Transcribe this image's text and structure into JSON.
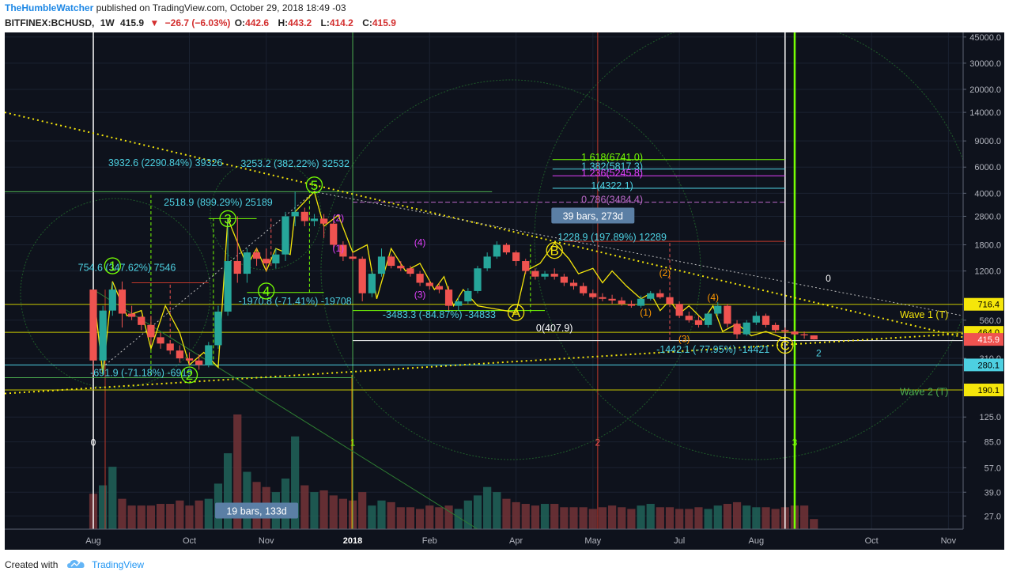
{
  "header": {
    "author": "TheHumbleWatcher",
    "published_text": "published on TradingView.com, October 29, 2018 18:49 -03",
    "symbol": "BITFINEX:BCHUSD,",
    "interval": "1W",
    "last": "415.9",
    "change_arrow": "▼",
    "change": "−26.7 (−6.03%)",
    "open_label": "O:",
    "open": "442.6",
    "high_label": "H:",
    "high": "443.2",
    "low_label": "L:",
    "low": "414.2",
    "close_label": "C:",
    "close": "415.9"
  },
  "footer": {
    "created_with": "Created with",
    "brand": "TradingView"
  },
  "chart_data": {
    "type": "candlestick",
    "symbol": "BITFINEX:BCHUSD",
    "interval": "1W",
    "y_scale": "log",
    "ylim": [
      22,
      46000
    ],
    "colors": {
      "up": "#26a69a",
      "down": "#ef5350",
      "background": "#0e121c"
    },
    "y_ticks": [
      {
        "v": 45000,
        "t": "45000.0"
      },
      {
        "v": 30000,
        "t": "30000.0"
      },
      {
        "v": 20000,
        "t": "20000.0"
      },
      {
        "v": 14000,
        "t": "14000.0"
      },
      {
        "v": 9000,
        "t": "9000.0"
      },
      {
        "v": 6000,
        "t": "6000.0"
      },
      {
        "v": 4000,
        "t": "4000.0"
      },
      {
        "v": 2800,
        "t": "2800.0"
      },
      {
        "v": 1800,
        "t": "1800.0"
      },
      {
        "v": 1200,
        "t": "1200.0"
      },
      {
        "v": 560,
        "t": "560.0"
      },
      {
        "v": 310,
        "t": "310.0"
      },
      {
        "v": 125,
        "t": "125.0"
      },
      {
        "v": 85,
        "t": "85.0"
      },
      {
        "v": 57,
        "t": "57.0"
      },
      {
        "v": 39,
        "t": "39.0"
      },
      {
        "v": 27,
        "t": "27.0"
      }
    ],
    "price_tags": [
      {
        "v": 716.4,
        "t": "716.4",
        "bg": "#f5e60a",
        "fg": "#000"
      },
      {
        "v": 464.0,
        "t": "464.0",
        "bg": "#f5e60a",
        "fg": "#000"
      },
      {
        "v": 415.9,
        "t": "415.9",
        "bg": "#ef5350",
        "fg": "#fff"
      },
      {
        "v": 280.1,
        "t": "280.1",
        "bg": "#4dd0e1",
        "fg": "#000"
      },
      {
        "v": 190.1,
        "t": "190.1",
        "bg": "#f5e60a",
        "fg": "#000"
      }
    ],
    "x_labels": [
      {
        "i": 0,
        "t": "Aug"
      },
      {
        "i": 10,
        "t": "Oct"
      },
      {
        "i": 18,
        "t": "Nov"
      },
      {
        "i": 27,
        "t": "2018"
      },
      {
        "i": 35,
        "t": "Feb"
      },
      {
        "i": 44,
        "t": "Apr"
      },
      {
        "i": 52,
        "t": "May"
      },
      {
        "i": 61,
        "t": "Jul"
      },
      {
        "i": 69,
        "t": "Aug"
      },
      {
        "i": 81,
        "t": "Oct"
      },
      {
        "i": 89,
        "t": "Nov"
      }
    ],
    "candles": [
      [
        900,
        900,
        240,
        300
      ],
      [
        300,
        700,
        240,
        650
      ],
      [
        650,
        1000,
        600,
        900
      ],
      [
        900,
        1020,
        500,
        620
      ],
      [
        620,
        700,
        560,
        590
      ],
      [
        590,
        600,
        480,
        520
      ],
      [
        520,
        600,
        380,
        430
      ],
      [
        430,
        460,
        360,
        390
      ],
      [
        390,
        410,
        330,
        350
      ],
      [
        350,
        380,
        290,
        310
      ],
      [
        310,
        340,
        280,
        300
      ],
      [
        300,
        330,
        260,
        280
      ],
      [
        280,
        400,
        270,
        380
      ],
      [
        380,
        700,
        360,
        640
      ],
      [
        640,
        2700,
        600,
        1400
      ],
      [
        1400,
        2800,
        1000,
        1150
      ],
      [
        1150,
        1700,
        1000,
        1600
      ],
      [
        1600,
        1700,
        1300,
        1450
      ],
      [
        1450,
        1700,
        1200,
        1350
      ],
      [
        1350,
        1700,
        1250,
        1550
      ],
      [
        1550,
        3000,
        1400,
        2800
      ],
      [
        2800,
        4100,
        2400,
        3000
      ],
      [
        3000,
        3200,
        2400,
        2600
      ],
      [
        2600,
        2900,
        2400,
        2700
      ],
      [
        2700,
        2900,
        2000,
        2500
      ],
      [
        2500,
        2600,
        1700,
        1800
      ],
      [
        1800,
        1900,
        1400,
        1500
      ],
      [
        1500,
        1600,
        1400,
        1450
      ],
      [
        1450,
        1500,
        750,
        850
      ],
      [
        850,
        1200,
        800,
        1150
      ],
      [
        1150,
        1700,
        1100,
        1500
      ],
      [
        1500,
        1550,
        1250,
        1300
      ],
      [
        1300,
        1400,
        1200,
        1250
      ],
      [
        1250,
        1300,
        1100,
        1150
      ],
      [
        1150,
        1200,
        950,
        1000
      ],
      [
        1000,
        1050,
        900,
        950
      ],
      [
        950,
        1000,
        850,
        900
      ],
      [
        900,
        950,
        650,
        700
      ],
      [
        700,
        800,
        650,
        750
      ],
      [
        750,
        920,
        720,
        880
      ],
      [
        880,
        1300,
        850,
        1250
      ],
      [
        1250,
        1600,
        1200,
        1500
      ],
      [
        1500,
        1900,
        1450,
        1800
      ],
      [
        1800,
        1850,
        1550,
        1600
      ],
      [
        1600,
        1650,
        1300,
        1400
      ],
      [
        1400,
        1450,
        1150,
        1200
      ],
      [
        1200,
        1250,
        1050,
        1100
      ],
      [
        1100,
        1200,
        1050,
        1150
      ],
      [
        1150,
        1250,
        1050,
        1100
      ],
      [
        1100,
        1150,
        950,
        1000
      ],
      [
        1000,
        1050,
        900,
        950
      ],
      [
        950,
        1000,
        820,
        850
      ],
      [
        850,
        900,
        780,
        800
      ],
      [
        800,
        850,
        750,
        780
      ],
      [
        780,
        830,
        720,
        760
      ],
      [
        760,
        800,
        700,
        720
      ],
      [
        720,
        760,
        680,
        700
      ],
      [
        700,
        820,
        680,
        780
      ],
      [
        780,
        880,
        760,
        850
      ],
      [
        850,
        900,
        780,
        800
      ],
      [
        800,
        850,
        700,
        720
      ],
      [
        720,
        750,
        580,
        600
      ],
      [
        600,
        640,
        540,
        560
      ],
      [
        560,
        600,
        500,
        520
      ],
      [
        520,
        640,
        500,
        620
      ],
      [
        620,
        740,
        600,
        700
      ],
      [
        700,
        720,
        500,
        530
      ],
      [
        530,
        560,
        420,
        450
      ],
      [
        450,
        560,
        440,
        540
      ],
      [
        540,
        640,
        520,
        600
      ],
      [
        600,
        620,
        500,
        520
      ],
      [
        520,
        540,
        460,
        480
      ],
      [
        480,
        500,
        450,
        470
      ],
      [
        470,
        480,
        440,
        450
      ],
      [
        450,
        470,
        420,
        443
      ],
      [
        442.6,
        443.2,
        414.2,
        415.9
      ]
    ],
    "volumes": [
      21,
      26,
      37,
      18,
      14,
      14,
      14,
      15,
      15,
      17,
      14,
      17,
      18,
      27,
      45,
      68,
      34,
      28,
      25,
      22,
      30,
      55,
      26,
      22,
      23,
      20,
      18,
      17,
      22,
      14,
      17,
      16,
      13,
      13,
      12,
      14,
      13,
      14,
      12,
      17,
      20,
      25,
      22,
      18,
      16,
      15,
      14,
      15,
      15,
      13,
      13,
      13,
      12,
      13,
      14,
      13,
      12,
      14,
      15,
      13,
      13,
      12,
      12,
      13,
      12,
      14,
      15,
      16,
      14,
      13,
      13,
      12,
      13,
      14,
      14,
      6
    ],
    "annotations": [
      {
        "i": 3.5,
        "v": 1200,
        "t": "754.6 (347.62%) 7546",
        "c": "#4dd0e1",
        "anchor": "middle"
      },
      {
        "i": 7.5,
        "v": 6100,
        "t": "3932.6 (2290.84%) 39326",
        "c": "#4dd0e1",
        "anchor": "middle"
      },
      {
        "i": 13,
        "v": 3300,
        "t": "2518.9 (899.29%) 25189",
        "c": "#4dd0e1",
        "anchor": "middle"
      },
      {
        "i": 21,
        "v": 6000,
        "t": "3253.2 (382.22%) 32532",
        "c": "#4dd0e1",
        "anchor": "middle"
      },
      {
        "i": 21,
        "v": 715,
        "t": "-1970.8 (-71.41%) -19708",
        "c": "#4dd0e1",
        "anchor": "middle"
      },
      {
        "i": 36,
        "v": 580,
        "t": "-3483.3 (-84.87%) -34833",
        "c": "#4dd0e1",
        "anchor": "middle"
      },
      {
        "i": 54,
        "v": 1930,
        "t": "1228.9 (197.89%) 12289",
        "c": "#4dd0e1",
        "anchor": "middle"
      },
      {
        "i": 5,
        "v": 236,
        "t": "-691.9 (-71.18%) -6919",
        "c": "#4dd0e1",
        "anchor": "middle"
      },
      {
        "i": 48,
        "v": 470,
        "t": "0(407.9)",
        "c": "#ffffff",
        "anchor": "middle"
      },
      {
        "i": 64.5,
        "v": 338,
        "t": "-1442.1 (-77.95%) -14421",
        "c": "#4dd0e1",
        "anchor": "middle"
      },
      {
        "i": 54,
        "v": 6650,
        "t": "1.618(6741.0)",
        "c": "#76ff03",
        "anchor": "middle"
      },
      {
        "i": 54,
        "v": 5750,
        "t": "1.382(5817.3)",
        "c": "#4dd0e1",
        "anchor": "middle"
      },
      {
        "i": 54,
        "v": 5180,
        "t": "1.236(5245.8)",
        "c": "#e040fb",
        "anchor": "middle"
      },
      {
        "i": 54,
        "v": 4270,
        "t": "1(4322.1)",
        "c": "#4dd0e1",
        "anchor": "middle"
      },
      {
        "i": 54,
        "v": 3440,
        "t": "0.786(3484.4)",
        "c": "#ba68c8",
        "anchor": "middle"
      },
      {
        "i": 89,
        "v": 580,
        "t": "Wave 1 (T)",
        "c": "#f5e60a",
        "anchor": "end"
      },
      {
        "i": 89,
        "v": 175,
        "t": "Wave 2 (T)",
        "c": "#4caf50",
        "anchor": "end"
      },
      {
        "i": 75.5,
        "v": 320,
        "t": "2",
        "c": "#4dd0e1",
        "anchor": "middle"
      },
      {
        "i": 76.5,
        "v": 1020,
        "t": "0",
        "c": "#ffffff",
        "anchor": "middle"
      },
      {
        "i": 25.5,
        "v": 2600,
        "t": "(2)",
        "c": "#e040fb",
        "anchor": "middle"
      },
      {
        "i": 25.5,
        "v": 1620,
        "t": "(1)",
        "c": "#e040fb",
        "anchor": "middle"
      },
      {
        "i": 34,
        "v": 1780,
        "t": "(4)",
        "c": "#e040fb",
        "anchor": "middle"
      },
      {
        "i": 34,
        "v": 790,
        "t": "(3)",
        "c": "#e040fb",
        "anchor": "middle"
      },
      {
        "i": 59.5,
        "v": 1110,
        "t": "(2)",
        "c": "#ff9800",
        "anchor": "middle"
      },
      {
        "i": 57.5,
        "v": 600,
        "t": "(1)",
        "c": "#ff9800",
        "anchor": "middle"
      },
      {
        "i": 64.5,
        "v": 760,
        "t": "(4)",
        "c": "#ff9800",
        "anchor": "middle"
      },
      {
        "i": 61.5,
        "v": 400,
        "t": "(3)",
        "c": "#ff9800",
        "anchor": "middle"
      },
      {
        "i": 52.5,
        "v": 80,
        "t": "2",
        "c": "#ef5350",
        "anchor": "middle"
      },
      {
        "i": 27,
        "v": 80,
        "t": "1",
        "c": "#76ff03",
        "anchor": "middle"
      },
      {
        "i": 0,
        "v": 80,
        "t": "0",
        "c": "#ffffff",
        "anchor": "middle"
      },
      {
        "i": 73,
        "v": 80,
        "t": "3",
        "c": "#76ff03",
        "anchor": "middle"
      }
    ],
    "wave_labels": [
      {
        "i": 2,
        "v": 1300,
        "t": "1",
        "c": "#76ff03"
      },
      {
        "i": 10,
        "v": 240,
        "t": "2",
        "c": "#76ff03"
      },
      {
        "i": 14,
        "v": 2700,
        "t": "3",
        "c": "#76ff03"
      },
      {
        "i": 18,
        "v": 880,
        "t": "4",
        "c": "#76ff03"
      },
      {
        "i": 23,
        "v": 4550,
        "t": "5",
        "c": "#76ff03"
      },
      {
        "i": 44,
        "v": 630,
        "t": "A",
        "c": "#f5e60a"
      },
      {
        "i": 48,
        "v": 1650,
        "t": "B",
        "c": "#f5e60a"
      },
      {
        "i": 72,
        "v": 380,
        "t": "C",
        "c": "#f5e60a"
      }
    ],
    "info_boxes": [
      {
        "i": 52,
        "v": 2800,
        "t": "39 bars, 273d"
      },
      {
        "i": 17,
        "v": 29,
        "t": "19 bars, 133d"
      }
    ]
  }
}
